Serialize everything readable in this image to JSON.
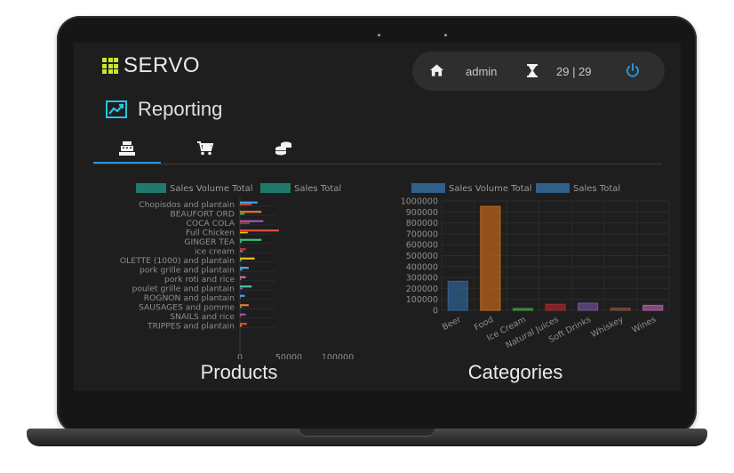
{
  "app": {
    "brand": "SERVO",
    "page_title": "Reporting",
    "icons": {
      "brand": "grid-icon",
      "page": "trending-chart-icon",
      "home": "home-icon",
      "timer": "hourglass-icon",
      "power": "power-icon"
    }
  },
  "userbar": {
    "user": "admin",
    "timer": "29 | 29"
  },
  "tabs": [
    {
      "name": "cash-register-icon",
      "active": true
    },
    {
      "name": "shopping-cart-icon",
      "active": false
    },
    {
      "name": "coins-icon",
      "active": false
    }
  ],
  "colors": {
    "accent": "#2e8fd8",
    "brand_green": "#c6e635",
    "teal": "#1f7a6a",
    "steel_blue": "#2f5f8a"
  },
  "chart_data": [
    {
      "type": "bar",
      "orientation": "horizontal",
      "title": "Products",
      "legend": [
        "Sales Volume Total",
        "Sales Total"
      ],
      "categories": [
        "Chopisdos and plantain",
        "BEAUFORT ORD",
        "COCA COLA",
        "Full Chicken",
        "GINGER TEA",
        "ice cream",
        "OLETTE (1000) and plantain",
        "pork grille and plantain",
        "pork roti and rice",
        "poulet grille and plantain",
        "ROGNON and plantain",
        "SAUSAGES and pomme",
        "SNAILS and rice",
        "TRIPPES and plantain"
      ],
      "series": [
        {
          "name": "Sales Volume Total",
          "values": [
            300,
            120,
            250,
            200,
            50,
            80,
            40,
            60,
            30,
            70,
            20,
            50,
            30,
            40
          ]
        },
        {
          "name": "Sales Total",
          "values": [
            18000,
            22000,
            24000,
            40000,
            22000,
            6000,
            15000,
            9000,
            6000,
            12000,
            5000,
            9000,
            6000,
            7000
          ]
        }
      ],
      "x_ticks": [
        "0",
        "50000",
        "100000"
      ],
      "xlim": [
        0,
        100000
      ]
    },
    {
      "type": "bar",
      "title": "Categories",
      "legend": [
        "Sales Volume Total",
        "Sales Total"
      ],
      "categories": [
        "Beer",
        "Food",
        "Ice Cream",
        "Natural Juices",
        "Soft Drinks",
        "Whiskey",
        "Wines"
      ],
      "values": [
        265000,
        950000,
        10000,
        55000,
        65000,
        20000,
        45000
      ],
      "bar_colors": [
        "#2e5f8e",
        "#b9631a",
        "#3f8f3f",
        "#9a2a2a",
        "#6a4f8a",
        "#7a4a3a",
        "#a05a9a"
      ],
      "y_ticks": [
        "0",
        "100000",
        "200000",
        "300000",
        "400000",
        "500000",
        "600000",
        "700000",
        "800000",
        "900000",
        "1000000"
      ],
      "ylim": [
        0,
        1000000
      ]
    }
  ]
}
